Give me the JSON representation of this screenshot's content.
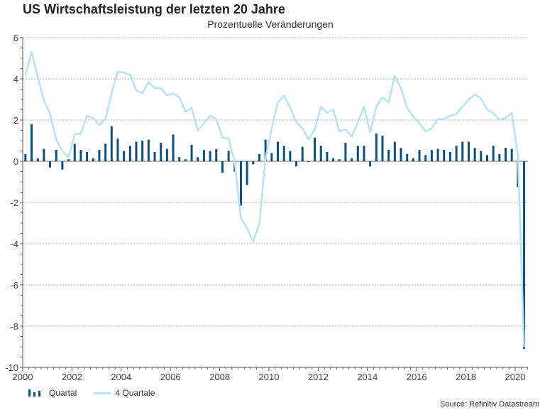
{
  "chart_data": {
    "type": "bar",
    "title": "US Wirtschaftsleistung der letzten 20 Jahre",
    "subtitle": "Prozentuelle Veränderungen",
    "xlabel": "",
    "ylabel": "",
    "ylim": [
      -10,
      6
    ],
    "xlim": [
      2000,
      2020.75
    ],
    "yticks": [
      "6",
      "4",
      "2",
      "0",
      "-2",
      "-4",
      "-6",
      "-8",
      "-10"
    ],
    "ytick_values": [
      6,
      4,
      2,
      0,
      -2,
      -4,
      -6,
      -8,
      -10
    ],
    "xticks": [
      "2000",
      "2002",
      "2004",
      "2006",
      "2008",
      "2010",
      "2012",
      "2014",
      "2016",
      "2018",
      "2020"
    ],
    "xtick_values": [
      2000,
      2002,
      2004,
      2006,
      2008,
      2010,
      2012,
      2014,
      2016,
      2018,
      2020
    ],
    "grid": "horizontal-dashed",
    "legend_position": "bottom-left",
    "start_quarter": "2000Q1",
    "series": [
      {
        "name": "Quartal",
        "type": "bar",
        "color": "#0d4f7e",
        "values": [
          0.35,
          1.8,
          0.15,
          0.6,
          -0.3,
          0.55,
          -0.4,
          0.1,
          0.85,
          0.55,
          0.45,
          0.15,
          0.55,
          0.85,
          1.7,
          1.1,
          0.5,
          0.75,
          0.95,
          1.0,
          1.05,
          0.45,
          0.9,
          0.6,
          1.3,
          0.2,
          0.1,
          0.8,
          0.2,
          0.55,
          0.5,
          0.6,
          -0.55,
          0.5,
          -0.5,
          -2.15,
          -1.15,
          -0.15,
          0.35,
          1.05,
          0.4,
          0.95,
          0.75,
          0.5,
          -0.25,
          0.7,
          0.0,
          1.15,
          0.75,
          0.45,
          0.15,
          0.1,
          0.9,
          0.15,
          0.75,
          0.75,
          -0.25,
          1.35,
          1.25,
          0.55,
          0.95,
          0.65,
          0.35,
          0.15,
          0.55,
          0.3,
          0.55,
          0.6,
          0.55,
          0.45,
          0.75,
          0.95,
          0.95,
          0.65,
          0.5,
          0.3,
          0.75,
          0.35,
          0.65,
          0.6,
          -1.25,
          -9.1
        ]
      },
      {
        "name": "4 Quartale",
        "type": "line",
        "color": "#b6e1f7",
        "values": [
          4.2,
          5.3,
          4.1,
          2.95,
          2.3,
          1.05,
          0.5,
          0.2,
          1.3,
          1.35,
          2.2,
          2.1,
          1.75,
          2.05,
          3.3,
          4.35,
          4.3,
          4.2,
          3.45,
          3.3,
          3.85,
          3.55,
          3.55,
          3.2,
          3.3,
          3.1,
          2.4,
          2.6,
          1.5,
          1.85,
          2.2,
          2.05,
          1.15,
          1.1,
          -0.05,
          -2.75,
          -3.25,
          -3.9,
          -3.0,
          0.15,
          1.6,
          2.85,
          3.2,
          2.6,
          1.9,
          1.6,
          1.05,
          1.55,
          2.65,
          2.35,
          2.5,
          1.45,
          1.55,
          1.2,
          1.9,
          2.65,
          1.4,
          2.65,
          3.1,
          2.85,
          4.15,
          3.55,
          2.6,
          2.15,
          1.85,
          1.45,
          1.6,
          2.05,
          2.05,
          2.2,
          2.3,
          2.65,
          3.0,
          3.25,
          3.05,
          2.5,
          2.35,
          2.0,
          2.1,
          2.35,
          0.3,
          -9.0
        ]
      }
    ]
  },
  "legend": {
    "bar_label": "Quartal",
    "line_label": "4 Quartale"
  },
  "source": "Source: Refinitiv Datastream"
}
